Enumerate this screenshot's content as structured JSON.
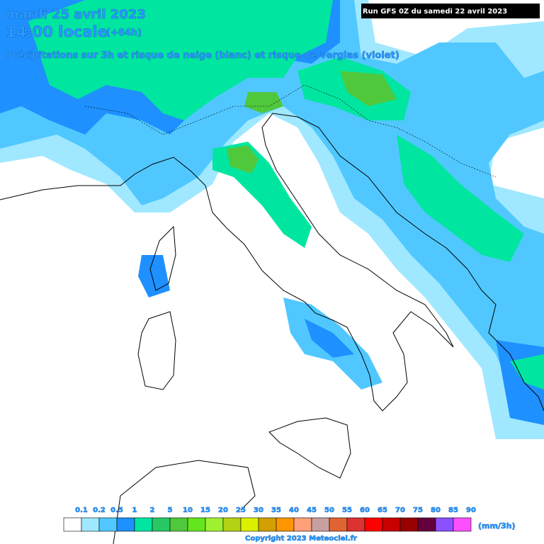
{
  "header": {
    "date": "mardi 25 avril 2023",
    "time": "14:00 locale",
    "lead": "(+84h)",
    "subtitle": "Précipitations sur 3h et risque de neige (blanc) et risque de verglas (violet)",
    "run": "Run GFS 0Z du samedi 22 avril 2023"
  },
  "legend": {
    "labels": [
      "0.1",
      "0.2",
      "0.5",
      "1",
      "2",
      "5",
      "10",
      "15",
      "20",
      "25",
      "30",
      "35",
      "40",
      "45",
      "50",
      "55",
      "60",
      "65",
      "70",
      "75",
      "80",
      "85",
      "90"
    ],
    "unit": "(mm/3h)"
  },
  "footer": {
    "copyright": "Copyright 2023 Meteociel.fr"
  }
}
